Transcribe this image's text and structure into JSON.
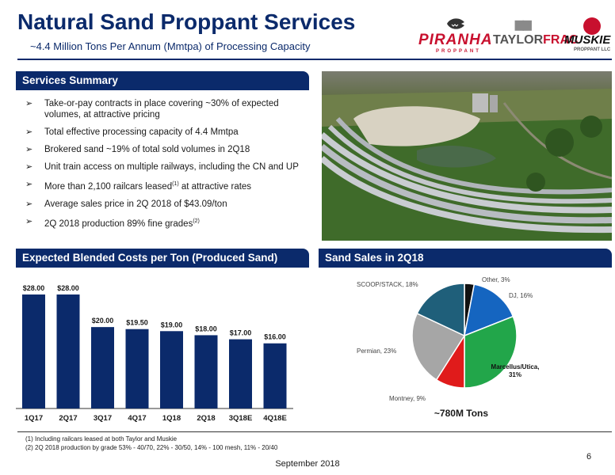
{
  "header": {
    "title": "Natural Sand Proppant Services",
    "subtitle": "~4.4 Million Tons Per Annum (Mmtpa) of Processing Capacity"
  },
  "logos": {
    "piranha": "PIRANHA",
    "piranha_sub": "PROPPANT",
    "taylor_prefix": "TAYLOR",
    "taylor_suffix": "FRAC",
    "muskie": "MUSKIE",
    "muskie_sub": "PROPPANT LLC"
  },
  "services": {
    "heading": "Services Summary",
    "bullets": [
      {
        "text": "Take-or-pay contracts in place covering ~30% of expected volumes, at attractive pricing"
      },
      {
        "text": "Total effective processing capacity of 4.4 Mmtpa"
      },
      {
        "text": "Brokered sand ~19% of total sold volumes in 2Q18"
      },
      {
        "text": "Unit train access on multiple railways, including the CN and UP"
      },
      {
        "text_a": "More than 2,100 railcars leased",
        "sup": "(1)",
        "text_b": " at attractive rates"
      },
      {
        "text": "Average sales price in 2Q 2018 of $43.09/ton"
      },
      {
        "text_a": "2Q 2018 production 89% fine grades",
        "sup": "(2)",
        "text_b": ""
      }
    ]
  },
  "costs_heading": "Expected Blended Costs per Ton (Produced Sand)",
  "sales_heading": "Sand Sales in 2Q18",
  "chart_data": [
    {
      "type": "bar",
      "title": "Expected Blended Costs per Ton (Produced Sand)",
      "categories": [
        "1Q17",
        "2Q17",
        "3Q17",
        "4Q17",
        "1Q18",
        "2Q18",
        "3Q18E",
        "4Q18E"
      ],
      "values": [
        28.0,
        28.0,
        20.0,
        19.5,
        19.0,
        18.0,
        17.0,
        16.0
      ],
      "value_labels": [
        "$28.00",
        "$28.00",
        "$20.00",
        "$19.50",
        "$19.00",
        "$18.00",
        "$17.00",
        "$16.00"
      ],
      "ylim": [
        0,
        28
      ],
      "grid": false,
      "color": "#0b2a6b"
    },
    {
      "type": "pie",
      "title": "Sand Sales in 2Q18",
      "slices": [
        {
          "label": "Other, 3%",
          "value": 3,
          "color": "#111111"
        },
        {
          "label": "DJ, 16%",
          "value": 16,
          "color": "#1565c0"
        },
        {
          "label": "Marcellus/Utica, 31%",
          "value": 31,
          "color": "#22a64a"
        },
        {
          "label": "Montney, 9%",
          "value": 9,
          "color": "#e01b1b"
        },
        {
          "label": "Permian, 23%",
          "value": 23,
          "color": "#a6a6a6"
        },
        {
          "label": "SCOOP/STACK, 18%",
          "value": 18,
          "color": "#1f5f7a"
        }
      ],
      "total_label": "~780M Tons"
    }
  ],
  "footnotes": [
    "(1) Including railcars leased at both Taylor and Muskie",
    "(2) 2Q 2018 production by grade 53% - 40/70, 22% - 30/50, 14% - 100 mesh, 11% - 20/40"
  ],
  "page_number": "6",
  "date": "September 2018"
}
